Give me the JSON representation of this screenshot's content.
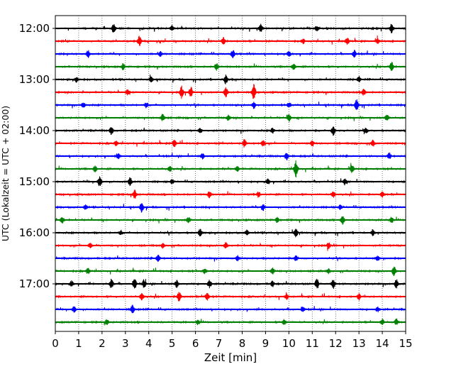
{
  "chart_data": {
    "type": "line",
    "title": "",
    "xlabel": "Zeit  [min]",
    "ylabel": "UTC (Lokalzeit = UTC + 02:00)",
    "xlim": [
      0,
      15
    ],
    "x_ticks": [
      "0",
      "1",
      "2",
      "3",
      "4",
      "5",
      "6",
      "7",
      "8",
      "9",
      "10",
      "11",
      "12",
      "13",
      "14",
      "15"
    ],
    "y_tick_labels": [
      "12:00",
      "13:00",
      "14:00",
      "15:00",
      "16:00",
      "17:00"
    ],
    "grid": "vertical dotted",
    "trace_interval_minutes": 15,
    "start_utc": "12:00",
    "trace_count": 24,
    "colors": [
      "#000000",
      "#ff0000",
      "#0000ff",
      "#008000"
    ],
    "traces": [
      {
        "utc": "12:00",
        "color": "#000000",
        "events": [
          [
            2.5,
            1.0
          ],
          [
            8.8,
            0.8
          ],
          [
            14.4,
            0.9
          ],
          [
            5.0,
            0.5
          ],
          [
            11.2,
            0.5
          ]
        ]
      },
      {
        "utc": "12:15",
        "color": "#ff0000",
        "events": [
          [
            3.6,
            1.0
          ],
          [
            7.2,
            0.7
          ],
          [
            10.6,
            0.5
          ],
          [
            12.5,
            0.7
          ],
          [
            13.8,
            0.5
          ]
        ]
      },
      {
        "utc": "12:30",
        "color": "#0000ff",
        "events": [
          [
            1.4,
            0.7
          ],
          [
            7.6,
            0.8
          ],
          [
            12.8,
            0.7
          ],
          [
            4.5,
            0.5
          ],
          [
            10.0,
            0.5
          ]
        ]
      },
      {
        "utc": "12:45",
        "color": "#008000",
        "events": [
          [
            2.9,
            0.6
          ],
          [
            6.9,
            0.7
          ],
          [
            14.4,
            0.9
          ],
          [
            10.2,
            0.6
          ]
        ]
      },
      {
        "utc": "13:00",
        "color": "#000000",
        "events": [
          [
            7.3,
            0.9
          ],
          [
            4.1,
            0.5
          ],
          [
            13.0,
            0.6
          ],
          [
            0.9,
            0.5
          ]
        ]
      },
      {
        "utc": "13:15",
        "color": "#ff0000",
        "events": [
          [
            5.4,
            1.2
          ],
          [
            5.8,
            1.0
          ],
          [
            7.3,
            1.0
          ],
          [
            8.5,
            1.6
          ],
          [
            3.1,
            0.6
          ],
          [
            13.2,
            0.6
          ]
        ]
      },
      {
        "utc": "13:30",
        "color": "#0000ff",
        "events": [
          [
            12.9,
            1.1
          ],
          [
            8.5,
            0.7
          ],
          [
            3.9,
            0.6
          ],
          [
            1.2,
            0.5
          ],
          [
            10.0,
            0.5
          ]
        ]
      },
      {
        "utc": "13:45",
        "color": "#008000",
        "events": [
          [
            4.6,
            0.7
          ],
          [
            10.0,
            0.7
          ],
          [
            14.2,
            0.6
          ],
          [
            7.4,
            0.5
          ]
        ]
      },
      {
        "utc": "14:00",
        "color": "#000000",
        "events": [
          [
            2.4,
            0.8
          ],
          [
            11.9,
            0.9
          ],
          [
            13.3,
            0.6
          ],
          [
            6.2,
            0.5
          ],
          [
            9.3,
            0.5
          ]
        ]
      },
      {
        "utc": "14:15",
        "color": "#ff0000",
        "events": [
          [
            5.1,
            0.7
          ],
          [
            8.1,
            0.8
          ],
          [
            8.9,
            0.6
          ],
          [
            13.6,
            0.6
          ],
          [
            2.6,
            0.5
          ],
          [
            11.0,
            0.5
          ]
        ]
      },
      {
        "utc": "14:30",
        "color": "#0000ff",
        "events": [
          [
            9.9,
            0.8
          ],
          [
            14.3,
            0.6
          ],
          [
            6.3,
            0.5
          ],
          [
            2.7,
            0.5
          ]
        ]
      },
      {
        "utc": "14:45",
        "color": "#008000",
        "events": [
          [
            10.3,
            1.6
          ],
          [
            12.7,
            0.8
          ],
          [
            1.7,
            0.6
          ],
          [
            4.9,
            0.5
          ],
          [
            7.8,
            0.5
          ]
        ]
      },
      {
        "utc": "15:00",
        "color": "#000000",
        "events": [
          [
            1.9,
            1.0
          ],
          [
            3.2,
            0.8
          ],
          [
            9.1,
            0.6
          ],
          [
            12.4,
            0.6
          ],
          [
            5.0,
            0.5
          ]
        ]
      },
      {
        "utc": "15:15",
        "color": "#ff0000",
        "events": [
          [
            3.4,
            0.8
          ],
          [
            6.6,
            0.7
          ],
          [
            11.9,
            0.6
          ],
          [
            8.7,
            0.5
          ],
          [
            14.0,
            0.5
          ]
        ]
      },
      {
        "utc": "15:30",
        "color": "#0000ff",
        "events": [
          [
            3.7,
            1.0
          ],
          [
            8.9,
            0.6
          ],
          [
            12.2,
            0.5
          ],
          [
            1.3,
            0.5
          ]
        ]
      },
      {
        "utc": "15:45",
        "color": "#008000",
        "events": [
          [
            12.3,
            0.8
          ],
          [
            14.4,
            0.6
          ],
          [
            0.3,
            0.6
          ],
          [
            5.7,
            0.5
          ],
          [
            9.5,
            0.5
          ]
        ]
      },
      {
        "utc": "16:00",
        "color": "#000000",
        "events": [
          [
            6.2,
            0.7
          ],
          [
            10.3,
            0.8
          ],
          [
            13.6,
            0.6
          ],
          [
            2.8,
            0.5
          ],
          [
            8.2,
            0.5
          ]
        ]
      },
      {
        "utc": "16:15",
        "color": "#ff0000",
        "events": [
          [
            7.3,
            0.6
          ],
          [
            11.7,
            0.6
          ],
          [
            4.6,
            0.5
          ],
          [
            1.5,
            0.5
          ]
        ]
      },
      {
        "utc": "16:30",
        "color": "#0000ff",
        "events": [
          [
            4.4,
            0.6
          ],
          [
            10.3,
            0.5
          ],
          [
            13.8,
            0.6
          ],
          [
            7.8,
            0.5
          ]
        ]
      },
      {
        "utc": "16:45",
        "color": "#008000",
        "events": [
          [
            14.5,
            1.0
          ],
          [
            1.4,
            0.6
          ],
          [
            9.3,
            0.6
          ],
          [
            6.4,
            0.5
          ],
          [
            11.7,
            0.5
          ]
        ]
      },
      {
        "utc": "17:00",
        "color": "#000000",
        "events": [
          [
            2.4,
            0.9
          ],
          [
            3.4,
            1.1
          ],
          [
            3.8,
            0.8
          ],
          [
            5.2,
            0.7
          ],
          [
            6.6,
            0.8
          ],
          [
            11.2,
            1.1
          ],
          [
            11.9,
            0.9
          ],
          [
            14.6,
            0.9
          ],
          [
            0.7,
            0.6
          ],
          [
            9.3,
            0.6
          ]
        ]
      },
      {
        "utc": "17:15",
        "color": "#ff0000",
        "events": [
          [
            3.7,
            0.7
          ],
          [
            5.3,
            0.9
          ],
          [
            6.5,
            0.7
          ],
          [
            13.0,
            0.6
          ],
          [
            9.9,
            0.5
          ]
        ]
      },
      {
        "utc": "17:30",
        "color": "#0000ff",
        "events": [
          [
            0.8,
            0.6
          ],
          [
            3.3,
            0.9
          ],
          [
            10.6,
            0.5
          ],
          [
            13.8,
            0.5
          ]
        ]
      },
      {
        "utc": "17:45",
        "color": "#008000",
        "events": [
          [
            14.0,
            0.6
          ],
          [
            14.6,
            0.6
          ],
          [
            6.1,
            0.5
          ],
          [
            2.2,
            0.5
          ],
          [
            9.8,
            0.5
          ]
        ]
      }
    ]
  }
}
